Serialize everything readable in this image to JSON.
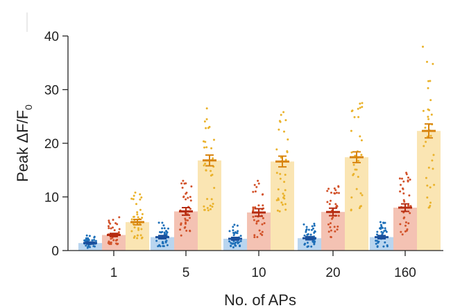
{
  "chart_data": {
    "type": "bar",
    "title": "",
    "xlabel": "No. of APs",
    "ylabel": "Peak ΔF/F",
    "ylabel_sub": "0",
    "categories": [
      "1",
      "5",
      "10",
      "20",
      "160"
    ],
    "ylim": [
      0,
      40
    ],
    "yticks": [
      0,
      10,
      20,
      30,
      40
    ],
    "series": [
      {
        "name": "blue",
        "bar_color": "#b9d5ef",
        "mark_color": "#1a4f9c",
        "dot_color": "#1d6fb8",
        "values": [
          1.4,
          2.5,
          2.2,
          2.3,
          2.5
        ],
        "sem": [
          0.2,
          0.3,
          0.25,
          0.3,
          0.3
        ],
        "dot_range": [
          [
            0.5,
            2.8
          ],
          [
            0.8,
            5.2
          ],
          [
            0.6,
            4.8
          ],
          [
            0.7,
            5.0
          ],
          [
            0.7,
            5.3
          ]
        ]
      },
      {
        "name": "red",
        "bar_color": "#f4c2b3",
        "mark_color": "#b52b10",
        "dot_color": "#d2522a",
        "values": [
          2.9,
          7.3,
          7.1,
          7.2,
          8.0
        ],
        "sem": [
          0.3,
          0.7,
          0.7,
          0.7,
          0.7
        ],
        "dot_range": [
          [
            1.2,
            6.2
          ],
          [
            2.8,
            13.0
          ],
          [
            2.5,
            13.0
          ],
          [
            2.5,
            12.0
          ],
          [
            3.0,
            14.5
          ]
        ]
      },
      {
        "name": "yellow",
        "bar_color": "#fae5b3",
        "mark_color": "#d8840e",
        "dot_color": "#eab22b",
        "values": [
          5.3,
          16.8,
          16.6,
          17.4,
          22.3
        ],
        "sem": [
          0.5,
          1.0,
          1.0,
          1.0,
          1.3
        ],
        "dot_range": [
          [
            2.3,
            10.8
          ],
          [
            7.5,
            26.5
          ],
          [
            7.3,
            25.8
          ],
          [
            7.5,
            27.5
          ],
          [
            8.0,
            38.0
          ]
        ]
      }
    ]
  }
}
